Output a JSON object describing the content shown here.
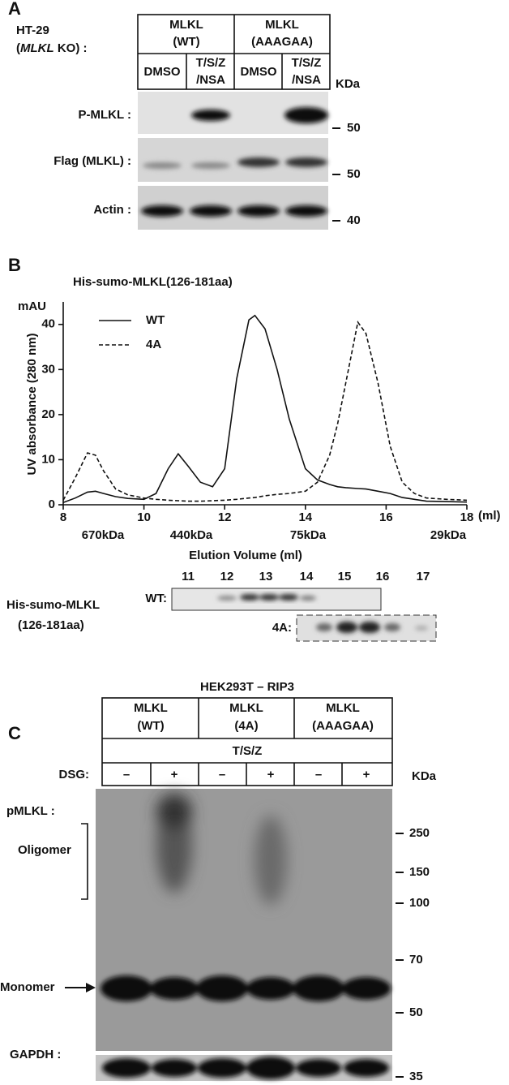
{
  "panel_a": {
    "letter": "A",
    "cell_line": "HT-29",
    "ko_open": "(",
    "ko_gene": "MLKL",
    "ko_close": " KO) :",
    "groups": [
      [
        "MLKL",
        "(WT)"
      ],
      [
        "MLKL",
        "(AAAGAA)"
      ]
    ],
    "treatments": [
      [
        "DMSO"
      ],
      [
        "T/S/Z",
        "/NSA"
      ],
      [
        "DMSO"
      ],
      [
        "T/S/Z",
        "/NSA"
      ]
    ],
    "unit": "KDa",
    "rows": [
      {
        "label": "P-MLKL :",
        "marker": "50"
      },
      {
        "label": "Flag (MLKL) :",
        "marker": "50"
      },
      {
        "label": "Actin :",
        "marker": "40"
      }
    ]
  },
  "chart_data": {
    "type": "line",
    "letter": "B",
    "title": "His-sumo-MLKL(126-181aa)",
    "y_unit": "mAU",
    "ylabel": "UV absorbance (280 nm)",
    "x_unit": "(ml)",
    "x": [
      8,
      8.3,
      8.6,
      8.8,
      9.0,
      9.3,
      9.6,
      10.0,
      10.3,
      10.6,
      10.85,
      11.1,
      11.4,
      11.7,
      12.0,
      12.3,
      12.6,
      12.75,
      13.0,
      13.3,
      13.6,
      14.0,
      14.3,
      14.6,
      14.8,
      15.0,
      15.3,
      15.5,
      15.8,
      16.1,
      16.4,
      16.7,
      17.0,
      17.5,
      18.0
    ],
    "series": [
      {
        "name": "WT",
        "color": "#111111",
        "dash": "solid",
        "values": [
          0.5,
          1.5,
          2.8,
          3,
          2.5,
          1.8,
          1.4,
          1.2,
          2.5,
          8,
          11.3,
          8.5,
          5,
          4,
          8,
          28,
          41,
          42,
          39,
          30,
          19,
          8,
          5.5,
          4.5,
          4,
          3.8,
          3.6,
          3.5,
          3,
          2.5,
          1.6,
          1.2,
          0.8,
          0.7,
          0.6
        ]
      },
      {
        "name": "4A",
        "color": "#111111",
        "dash": "dashed",
        "values": [
          1,
          6,
          11.5,
          11,
          7.5,
          3.5,
          2.2,
          1.5,
          1.2,
          1,
          0.9,
          0.8,
          0.8,
          0.9,
          1,
          1.2,
          1.5,
          1.6,
          2,
          2.3,
          2.5,
          3,
          5,
          11,
          18,
          27,
          40.5,
          38,
          27,
          13,
          5,
          2.5,
          1.5,
          1.2,
          1.0
        ]
      }
    ],
    "xlim": [
      8,
      18
    ],
    "xticks": [
      8,
      10,
      12,
      14,
      16,
      18
    ],
    "ylim": [
      0,
      45
    ],
    "yticks": [
      0,
      10,
      20,
      30,
      40
    ],
    "size_markers": [
      "670kDa",
      "440kDa",
      "75kDa",
      "29kDa"
    ]
  },
  "panel_b_gel": {
    "title": "Elution Volume (ml)",
    "fractions": [
      11,
      12,
      13,
      14,
      15,
      16,
      17
    ],
    "protein": [
      "His-sumo-MLKL",
      "(126-181aa)"
    ],
    "rows": [
      "WT:",
      "4A:"
    ]
  },
  "panel_c": {
    "letter": "C",
    "title": "HEK293T – RIP3",
    "groups": [
      [
        "MLKL",
        "(WT)"
      ],
      [
        "MLKL",
        "(4A)"
      ],
      [
        "MLKL",
        "(AAAGAA)"
      ]
    ],
    "treatment": "T/S/Z",
    "dsg_label": "DSG:",
    "dsg": [
      "–",
      "+",
      "–",
      "+",
      "–",
      "+"
    ],
    "unit": "KDa",
    "pmlkl": "pMLKL :",
    "oligomer": "Oligomer",
    "monomer": "Monomer",
    "markers": [
      "250",
      "150",
      "100",
      "70",
      "50"
    ],
    "loading": "GAPDH :",
    "loading_marker": "35"
  }
}
